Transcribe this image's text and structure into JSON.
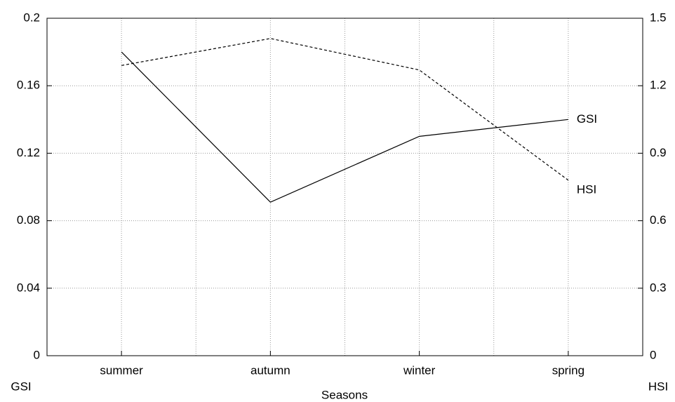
{
  "chart_data": {
    "type": "line",
    "categories": [
      "summer",
      "autumn",
      "winter",
      "spring"
    ],
    "xlabel": "Seasons",
    "ylabel": "GSI",
    "y2label": "HSI",
    "ylim": [
      0,
      0.2
    ],
    "yticks": [
      0,
      0.04,
      0.08,
      0.12,
      0.16,
      0.2
    ],
    "y2lim": [
      0,
      1.5
    ],
    "y2ticks": [
      0,
      0.3,
      0.6,
      0.9,
      1.2,
      1.5
    ],
    "grid": true,
    "series": [
      {
        "name": "GSI",
        "color": "#000000",
        "line_style": "solid",
        "values": [
          0.18,
          0.091,
          0.13,
          0.14
        ]
      },
      {
        "name": "HSI",
        "color": "#000000",
        "line_style": "dashed",
        "axis": "y2",
        "values": [
          1.29,
          1.41,
          1.27,
          0.78
        ]
      }
    ]
  }
}
